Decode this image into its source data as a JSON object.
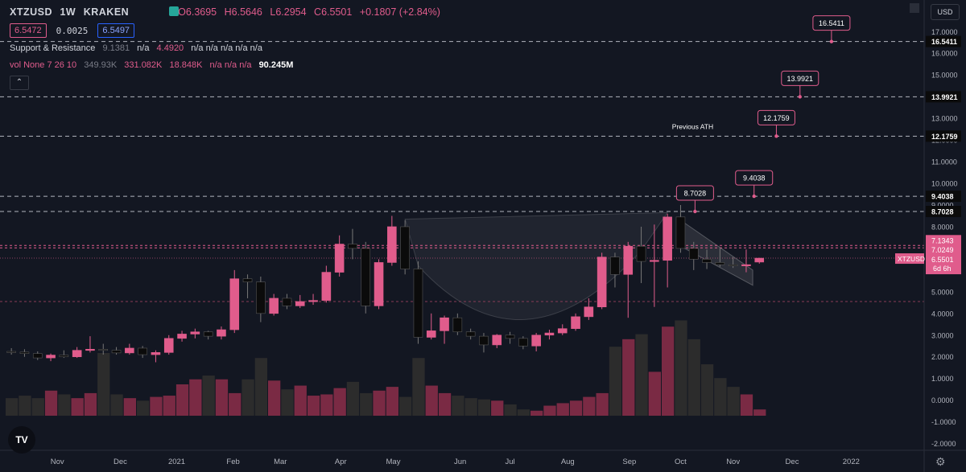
{
  "header": {
    "symbol": "XTZUSD",
    "interval": "1W",
    "exchange": "KRAKEN",
    "ohlc": {
      "open": "O6.3695",
      "high": "H6.5646",
      "low": "L6.2954",
      "close": "C6.5501",
      "change": "+0.1807 (+2.84%)"
    },
    "bid": "6.5472",
    "spread": "0.0025",
    "ask": "6.5497"
  },
  "indicators": {
    "sr": {
      "name": "Support & Resistance",
      "v1": "9.1381",
      "v2": "n/a",
      "v3": "4.4920",
      "rest": "n/a n/a n/a n/a n/a"
    },
    "vol": {
      "name": "vol None 7 26 10",
      "v1": "349.93K",
      "v2": "331.082K",
      "v3": "18.848K",
      "rest": "n/a n/a n/a",
      "v4": "90.245M"
    }
  },
  "controls": {
    "currency": "USD",
    "collapse_icon": "chevron-up-icon",
    "settings_icon": "gear-icon",
    "logo": "tradingview-logo"
  },
  "colors": {
    "bull": "#e05c8c",
    "bear": "#0b0b0b",
    "vol_bull": "#7a2a44",
    "vol_bear": "#2c2c2c",
    "accent_label": "#e05c8c",
    "background": "#131722"
  },
  "chart_data": {
    "type": "candlestick",
    "scale": "linear",
    "grid": false,
    "ylim": [
      -2.2,
      17.9
    ],
    "y_ticks": [
      "17.0000",
      "16.0000",
      "15.0000",
      "14.0000",
      "13.0000",
      "12.0000",
      "11.0000",
      "10.0000",
      "9.0000",
      "8.0000",
      "7.0000",
      "6.0000",
      "5.0000",
      "4.0000",
      "3.0000",
      "2.0000",
      "1.0000",
      "0.0000",
      "-1.0000",
      "-2.0000"
    ],
    "y_tick_values": [
      17,
      16,
      15,
      14,
      13,
      12,
      11,
      10,
      9,
      8,
      7,
      6,
      5,
      4,
      3,
      2,
      1,
      0,
      -1,
      -2
    ],
    "x_labels": [
      "Nov",
      "Dec",
      "2021",
      "Feb",
      "Mar",
      "Apr",
      "May",
      "Jun",
      "Jul",
      "Aug",
      "Sep",
      "Oct",
      "Nov",
      "Dec",
      "2022"
    ],
    "x_label_weeks": [
      3.5,
      8.3,
      12.6,
      16.9,
      20.5,
      25.1,
      29.1,
      34.2,
      38.0,
      42.4,
      47.1,
      51.0,
      55.0,
      59.5,
      64.0
    ],
    "candles": [
      {
        "o": 2.25,
        "h": 2.4,
        "l": 2.1,
        "c": 2.22
      },
      {
        "o": 2.22,
        "h": 2.35,
        "l": 2.0,
        "c": 2.15
      },
      {
        "o": 2.15,
        "h": 2.25,
        "l": 1.85,
        "c": 1.95
      },
      {
        "o": 1.95,
        "h": 2.15,
        "l": 1.8,
        "c": 2.08
      },
      {
        "o": 2.08,
        "h": 2.3,
        "l": 1.95,
        "c": 2.0
      },
      {
        "o": 2.0,
        "h": 2.45,
        "l": 1.95,
        "c": 2.3
      },
      {
        "o": 2.3,
        "h": 2.95,
        "l": 2.2,
        "c": 2.35
      },
      {
        "o": 2.35,
        "h": 2.6,
        "l": 2.1,
        "c": 2.3
      },
      {
        "o": 2.3,
        "h": 2.45,
        "l": 2.1,
        "c": 2.18
      },
      {
        "o": 2.18,
        "h": 2.6,
        "l": 2.1,
        "c": 2.4
      },
      {
        "o": 2.4,
        "h": 2.5,
        "l": 1.95,
        "c": 2.1
      },
      {
        "o": 2.1,
        "h": 2.3,
        "l": 1.75,
        "c": 2.2
      },
      {
        "o": 2.2,
        "h": 3.0,
        "l": 2.1,
        "c": 2.85
      },
      {
        "o": 2.85,
        "h": 3.2,
        "l": 2.7,
        "c": 3.05
      },
      {
        "o": 3.05,
        "h": 3.3,
        "l": 2.85,
        "c": 3.15
      },
      {
        "o": 3.15,
        "h": 3.2,
        "l": 2.8,
        "c": 2.95
      },
      {
        "o": 2.95,
        "h": 3.4,
        "l": 2.8,
        "c": 3.25
      },
      {
        "o": 3.25,
        "h": 6.0,
        "l": 3.1,
        "c": 5.6
      },
      {
        "o": 5.6,
        "h": 5.8,
        "l": 4.7,
        "c": 5.45
      },
      {
        "o": 5.45,
        "h": 5.7,
        "l": 3.6,
        "c": 4.0
      },
      {
        "o": 4.0,
        "h": 4.9,
        "l": 3.9,
        "c": 4.7
      },
      {
        "o": 4.7,
        "h": 4.9,
        "l": 4.2,
        "c": 4.35
      },
      {
        "o": 4.35,
        "h": 4.85,
        "l": 4.25,
        "c": 4.55
      },
      {
        "o": 4.55,
        "h": 4.9,
        "l": 4.4,
        "c": 4.6
      },
      {
        "o": 4.6,
        "h": 6.2,
        "l": 4.5,
        "c": 5.9
      },
      {
        "o": 5.9,
        "h": 7.6,
        "l": 5.7,
        "c": 7.2
      },
      {
        "o": 7.2,
        "h": 7.9,
        "l": 6.5,
        "c": 7.0
      },
      {
        "o": 7.0,
        "h": 7.3,
        "l": 4.0,
        "c": 4.35
      },
      {
        "o": 4.35,
        "h": 6.5,
        "l": 4.2,
        "c": 6.35
      },
      {
        "o": 6.35,
        "h": 8.5,
        "l": 6.2,
        "c": 8.0
      },
      {
        "o": 8.0,
        "h": 8.3,
        "l": 5.8,
        "c": 6.05
      },
      {
        "o": 6.05,
        "h": 6.4,
        "l": 2.6,
        "c": 2.9
      },
      {
        "o": 2.9,
        "h": 4.0,
        "l": 2.8,
        "c": 3.2
      },
      {
        "o": 3.2,
        "h": 3.9,
        "l": 2.6,
        "c": 3.8
      },
      {
        "o": 3.8,
        "h": 4.0,
        "l": 3.0,
        "c": 3.15
      },
      {
        "o": 3.15,
        "h": 3.3,
        "l": 2.8,
        "c": 2.95
      },
      {
        "o": 2.95,
        "h": 3.1,
        "l": 2.2,
        "c": 2.55
      },
      {
        "o": 2.55,
        "h": 3.05,
        "l": 2.4,
        "c": 3.0
      },
      {
        "o": 3.0,
        "h": 3.15,
        "l": 2.6,
        "c": 2.85
      },
      {
        "o": 2.85,
        "h": 2.95,
        "l": 2.35,
        "c": 2.5
      },
      {
        "o": 2.5,
        "h": 3.1,
        "l": 2.25,
        "c": 3.0
      },
      {
        "o": 3.0,
        "h": 3.25,
        "l": 2.8,
        "c": 3.1
      },
      {
        "o": 3.1,
        "h": 3.5,
        "l": 3.0,
        "c": 3.3
      },
      {
        "o": 3.3,
        "h": 4.0,
        "l": 3.2,
        "c": 3.85
      },
      {
        "o": 3.85,
        "h": 4.7,
        "l": 3.7,
        "c": 4.3
      },
      {
        "o": 4.3,
        "h": 6.8,
        "l": 4.2,
        "c": 6.6
      },
      {
        "o": 6.6,
        "h": 6.8,
        "l": 5.2,
        "c": 5.8
      },
      {
        "o": 5.8,
        "h": 7.3,
        "l": 3.8,
        "c": 7.1
      },
      {
        "o": 7.1,
        "h": 8.0,
        "l": 5.4,
        "c": 6.4
      },
      {
        "o": 6.4,
        "h": 8.1,
        "l": 4.3,
        "c": 6.45
      },
      {
        "o": 6.45,
        "h": 8.6,
        "l": 5.2,
        "c": 8.45
      },
      {
        "o": 8.45,
        "h": 9.0,
        "l": 6.8,
        "c": 7.0
      },
      {
        "o": 7.0,
        "h": 7.3,
        "l": 6.0,
        "c": 6.5
      },
      {
        "o": 6.5,
        "h": 6.95,
        "l": 6.05,
        "c": 6.35
      },
      {
        "o": 6.35,
        "h": 7.05,
        "l": 6.15,
        "c": 6.25
      },
      {
        "o": 6.25,
        "h": 6.6,
        "l": 6.1,
        "c": 6.2
      },
      {
        "o": 6.2,
        "h": 6.95,
        "l": 5.9,
        "c": 6.25
      },
      {
        "o": 6.3695,
        "h": 6.5646,
        "l": 6.2954,
        "c": 6.5501
      }
    ],
    "volume_relative": [
      0.28,
      0.32,
      0.28,
      0.4,
      0.34,
      0.28,
      0.36,
      1.0,
      0.34,
      0.28,
      0.24,
      0.3,
      0.32,
      0.5,
      0.58,
      0.64,
      0.58,
      0.36,
      0.58,
      0.92,
      0.56,
      0.42,
      0.48,
      0.32,
      0.34,
      0.44,
      0.54,
      0.36,
      0.4,
      0.46,
      0.3,
      0.92,
      0.48,
      0.36,
      0.32,
      0.28,
      0.26,
      0.24,
      0.18,
      0.1,
      0.08,
      0.16,
      0.2,
      0.24,
      0.3,
      0.36,
      1.1,
      1.22,
      1.3,
      0.7,
      1.42,
      1.52,
      1.22,
      0.82,
      0.6,
      0.46,
      0.34,
      0.1
    ],
    "horizontal_levels": [
      {
        "value": 16.5411,
        "label": "16.5411"
      },
      {
        "value": 13.9921,
        "label": "13.9921"
      },
      {
        "value": 12.1759,
        "label": "12.1759"
      },
      {
        "value": 9.4038,
        "label": "9.4038"
      },
      {
        "value": 8.7028,
        "label": "8.7028"
      }
    ],
    "support_lines": [
      7.1343,
      7.0249,
      4.55
    ],
    "axis_badges": [
      {
        "label": "7.1343"
      },
      {
        "label": "7.0249"
      },
      {
        "label": "6.5501"
      },
      {
        "label": "6d 6h"
      }
    ],
    "symbol_badge": "XTZUSD",
    "callouts": [
      {
        "label": "16.5411",
        "week": 62.5,
        "value": 16.5411
      },
      {
        "label": "13.9921",
        "week": 60.1,
        "value": 13.9921
      },
      {
        "label": "12.1759",
        "week": 58.3,
        "value": 12.1759
      },
      {
        "label": "9.4038",
        "week": 56.6,
        "value": 9.4038
      },
      {
        "label": "8.7028",
        "week": 52.1,
        "value": 8.7028
      }
    ],
    "annotation": {
      "text": "Previous ATH",
      "week": 52.8,
      "value": 12.5
    }
  }
}
